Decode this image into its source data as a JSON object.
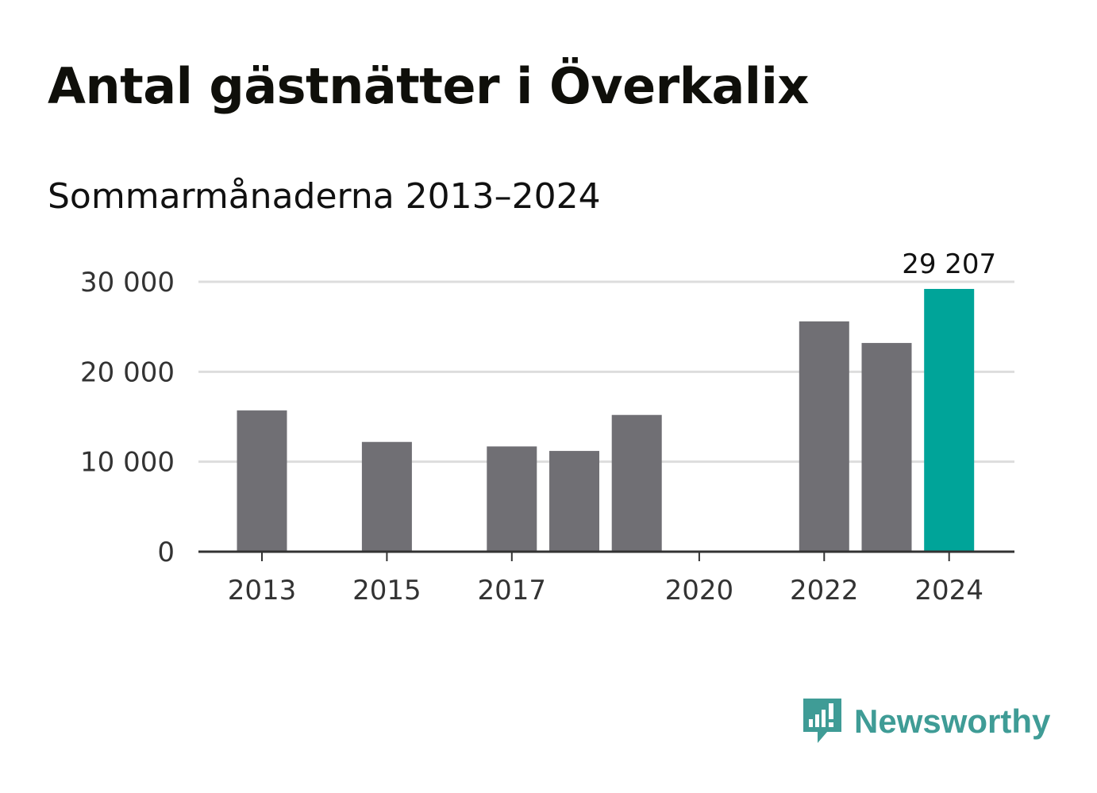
{
  "title": "Antal gästnätter i Överkalix",
  "subtitle": "Sommarmånaderna 2013–2024",
  "brand": {
    "name": "Newsworthy",
    "color": "#3f9c96",
    "icon": "newsworthy-logo-icon"
  },
  "colors": {
    "bar": "#706f74",
    "highlight": "#00a499",
    "grid": "#dddddd",
    "axis": "#333333"
  },
  "chart_data": {
    "type": "bar",
    "categories": [
      "2013",
      "2014",
      "2015",
      "2016",
      "2017",
      "2018",
      "2019",
      "2020",
      "2021",
      "2022",
      "2023",
      "2024"
    ],
    "values": [
      15700,
      null,
      12200,
      null,
      11700,
      11200,
      15200,
      null,
      null,
      25600,
      23200,
      29207
    ],
    "x_tick_labels": [
      "2013",
      "2015",
      "2017",
      "2020",
      "2022",
      "2024"
    ],
    "y_ticks": [
      0,
      10000,
      20000,
      30000
    ],
    "y_tick_labels": [
      "0",
      "10 000",
      "20 000",
      "30 000"
    ],
    "ylim": [
      0,
      30000
    ],
    "highlight_category": "2024",
    "data_labels": [
      {
        "category": "2024",
        "text": "29 207"
      }
    ],
    "grid": true
  }
}
